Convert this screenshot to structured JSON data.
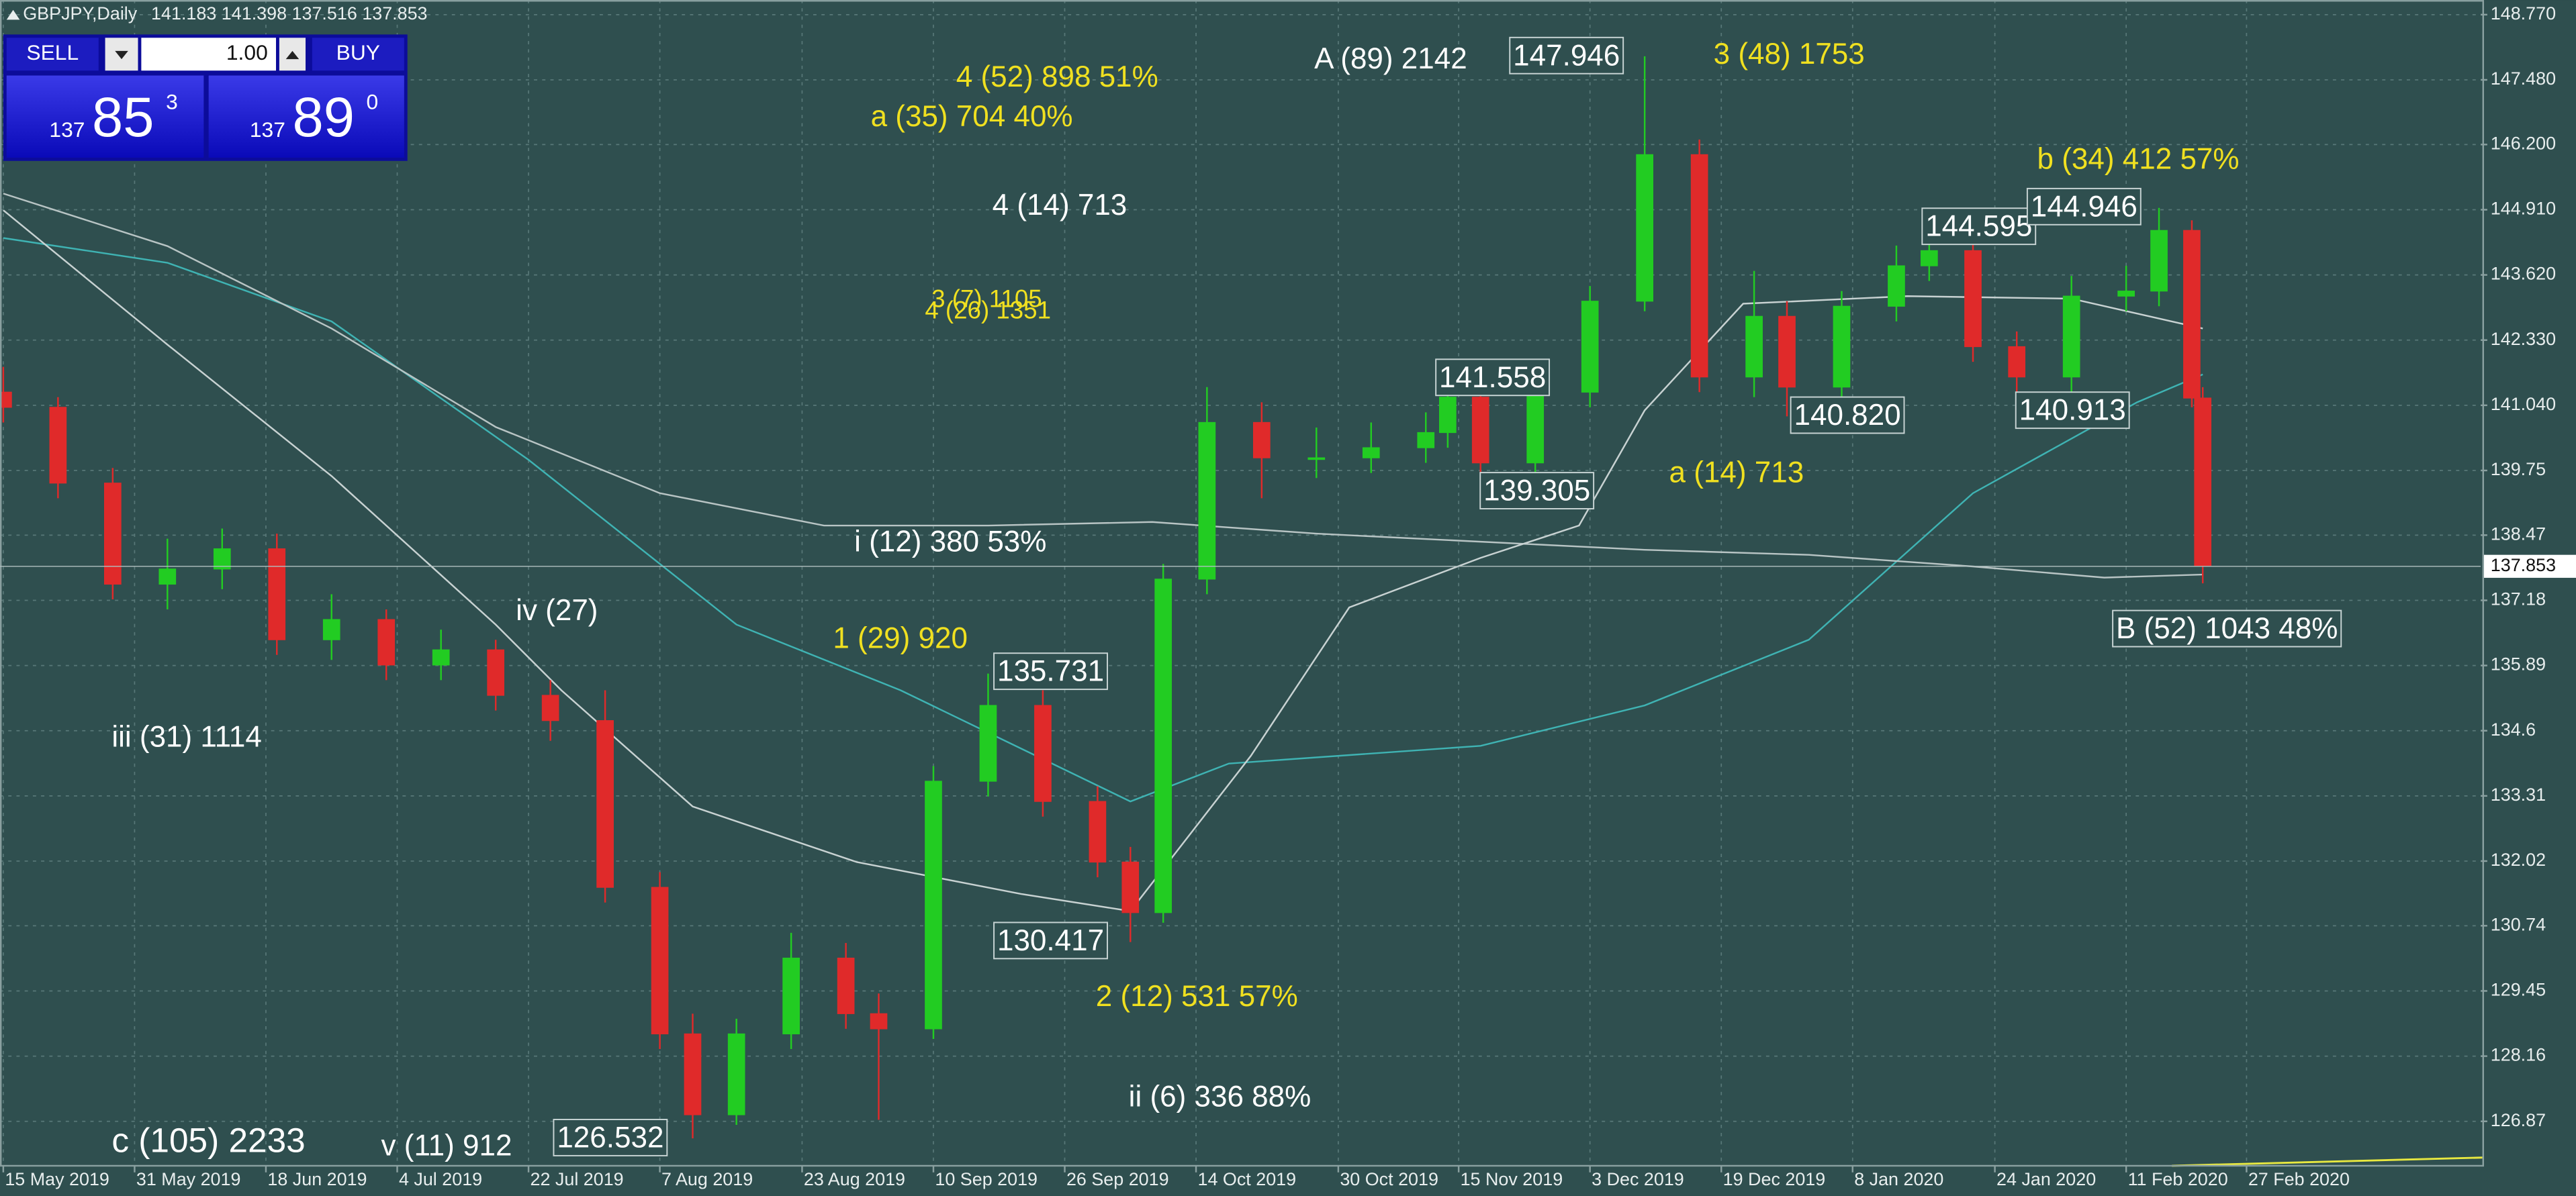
{
  "chart_data": {
    "type": "candlestick",
    "header": "GBPJPY,Daily",
    "header_prices": "141.183 141.398 137.516 137.853",
    "trade_panel": {
      "sell": "SELL",
      "buy": "BUY",
      "lots": "1.00",
      "sell_price": [
        "137",
        "85",
        "3"
      ],
      "buy_price": [
        "137",
        "89",
        "0"
      ]
    },
    "x": [
      0,
      5,
      10,
      15,
      20,
      25,
      30,
      35,
      40,
      45,
      50,
      55,
      60,
      63,
      67,
      72,
      77,
      80,
      85,
      90,
      95,
      100,
      103,
      106,
      110,
      115,
      120,
      125,
      130,
      132,
      135,
      140,
      145,
      150,
      155,
      160,
      163,
      168,
      173,
      176,
      180,
      184,
      189,
      194,
      197,
      200,
      201
    ],
    "open": [
      141.3,
      141.0,
      139.5,
      137.5,
      137.8,
      138.2,
      136.4,
      136.8,
      135.9,
      136.2,
      135.3,
      134.8,
      131.5,
      128.6,
      127.0,
      128.6,
      130.1,
      129.0,
      128.7,
      133.6,
      135.1,
      133.2,
      132.0,
      131.0,
      137.6,
      140.7,
      140.0,
      140.0,
      140.2,
      140.5,
      141.2,
      139.9,
      141.3,
      143.1,
      146.0,
      141.6,
      142.8,
      141.4,
      143.0,
      143.8,
      144.1,
      142.2,
      141.6,
      143.2,
      143.3,
      144.5,
      141.183
    ],
    "high": [
      141.8,
      141.2,
      139.8,
      138.4,
      138.6,
      138.5,
      137.3,
      137.0,
      136.6,
      136.4,
      135.6,
      135.4,
      131.8,
      129.0,
      128.9,
      130.6,
      130.4,
      129.4,
      133.9,
      135.731,
      135.4,
      133.5,
      132.3,
      137.9,
      141.4,
      141.1,
      140.6,
      140.7,
      140.9,
      141.558,
      141.4,
      141.6,
      143.4,
      147.946,
      146.3,
      143.7,
      143.1,
      143.3,
      144.2,
      144.595,
      144.3,
      142.5,
      143.6,
      143.8,
      144.946,
      144.7,
      141.398
    ],
    "low": [
      140.7,
      139.2,
      137.2,
      137.0,
      137.4,
      136.1,
      136.0,
      135.6,
      135.6,
      135.0,
      134.4,
      131.2,
      128.3,
      126.532,
      126.8,
      128.3,
      128.7,
      126.9,
      128.5,
      133.3,
      132.9,
      131.7,
      130.417,
      130.8,
      137.3,
      139.2,
      139.6,
      139.7,
      139.9,
      140.2,
      139.305,
      139.7,
      141.0,
      142.9,
      141.3,
      141.2,
      140.82,
      141.1,
      142.7,
      143.5,
      141.9,
      140.913,
      141.3,
      142.9,
      143.0,
      141.0,
      137.516
    ],
    "close": [
      141.0,
      139.5,
      137.5,
      137.8,
      138.2,
      136.4,
      136.8,
      135.9,
      136.2,
      135.3,
      134.8,
      131.5,
      128.6,
      127.0,
      128.6,
      130.1,
      129.0,
      128.7,
      133.6,
      135.1,
      133.2,
      132.0,
      131.0,
      137.6,
      140.7,
      140.0,
      140.0,
      140.2,
      140.5,
      141.2,
      139.9,
      141.3,
      143.1,
      146.0,
      141.6,
      142.8,
      141.4,
      143.0,
      143.8,
      144.1,
      142.2,
      141.6,
      143.2,
      143.3,
      144.5,
      141.183,
      137.853
    ],
    "up_color": "#22cc22",
    "down_color": "#e02a2a",
    "moving_averages": [
      {
        "color": "#3fb3b3",
        "x": [
          0,
          15,
          30,
          48,
          67,
          82,
          103,
          112,
          135,
          150,
          165,
          180,
          195,
          201
        ],
        "values": [
          144.35,
          143.86,
          142.7,
          139.96,
          136.7,
          135.4,
          133.2,
          133.95,
          134.3,
          135.1,
          136.4,
          139.3,
          141.1,
          141.65
        ]
      },
      {
        "color": "#b8c4c4",
        "x": [
          0,
          15,
          30,
          45,
          60,
          75,
          90,
          105,
          120,
          135,
          150,
          165,
          180,
          192,
          201
        ],
        "values": [
          145.23,
          144.19,
          142.56,
          140.61,
          139.3,
          138.66,
          138.66,
          138.73,
          138.5,
          138.34,
          138.18,
          138.08,
          137.85,
          137.63,
          137.69
        ]
      },
      {
        "color": "#c8d2d2",
        "x": [
          0,
          15,
          30,
          45,
          51,
          63,
          78,
          93,
          103,
          114,
          123,
          135,
          144,
          150,
          159,
          174,
          189,
          201
        ],
        "values": [
          144.9,
          142.24,
          139.64,
          136.7,
          135.4,
          133.1,
          132.0,
          131.37,
          131.03,
          134.1,
          137.04,
          138.02,
          138.66,
          140.94,
          143.05,
          143.2,
          143.15,
          142.56
        ]
      }
    ],
    "current_price": 137.853,
    "xlim": [
      -0.3,
      226.4
    ],
    "ylim": [
      125.99,
      149.06
    ],
    "xticks": [
      {
        "value": 0,
        "label": "15 May 2019"
      },
      {
        "value": 12,
        "label": "31 May 2019"
      },
      {
        "value": 24,
        "label": "18 Jun 2019"
      },
      {
        "value": 36,
        "label": "4 Jul 2019"
      },
      {
        "value": 48,
        "label": "22 Jul 2019"
      },
      {
        "value": 60,
        "label": "7 Aug 2019"
      },
      {
        "value": 73,
        "label": "23 Aug 2019"
      },
      {
        "value": 85,
        "label": "10 Sep 2019"
      },
      {
        "value": 97,
        "label": "26 Sep 2019"
      },
      {
        "value": 109,
        "label": "14 Oct 2019"
      },
      {
        "value": 122,
        "label": "30 Oct 2019"
      },
      {
        "value": 133,
        "label": "15 Nov 2019"
      },
      {
        "value": 145,
        "label": "3 Dec 2019"
      },
      {
        "value": 157,
        "label": "19 Dec 2019"
      },
      {
        "value": 169,
        "label": "8 Jan 2020"
      },
      {
        "value": 182,
        "label": "24 Jan 2020"
      },
      {
        "value": 194,
        "label": "11 Feb 2020"
      },
      {
        "value": 205,
        "label": "27 Feb 2020"
      }
    ],
    "yticks": [
      {
        "value": 148.77,
        "label": "148.770"
      },
      {
        "value": 147.48,
        "label": "147.480"
      },
      {
        "value": 146.2,
        "label": "146.200"
      },
      {
        "value": 144.91,
        "label": "144.910"
      },
      {
        "value": 143.62,
        "label": "143.620"
      },
      {
        "value": 142.33,
        "label": "142.330"
      },
      {
        "value": 141.04,
        "label": "141.040"
      },
      139.75,
      138.47,
      137.18,
      135.89,
      134.6,
      133.31,
      132.02,
      130.74,
      129.45,
      128.16,
      126.87
    ],
    "grid": true,
    "annotations": [
      "A (89) 2142",
      "147.946",
      "3 (48) 1753",
      "4 (52) 898 51%",
      "a (35) 704 40%",
      "4 (14) 713",
      "b (34) 412  57%",
      "144.595",
      "144.946",
      "3 (7) 1105",
      "4 (26) 1351",
      "141.558",
      "140.820",
      "140.913",
      "139.305",
      "a (14) 713",
      "i (12) 380 53%",
      "iv (27)",
      "B (52) 1043 48%",
      "1 (29) 920",
      "135.731",
      "iii (31) 1114",
      "130.417",
      "2 (12) 531 57%",
      "ii (6) 336 88%",
      "c (105) 2233",
      "v (11) 912",
      "126.532"
    ]
  }
}
